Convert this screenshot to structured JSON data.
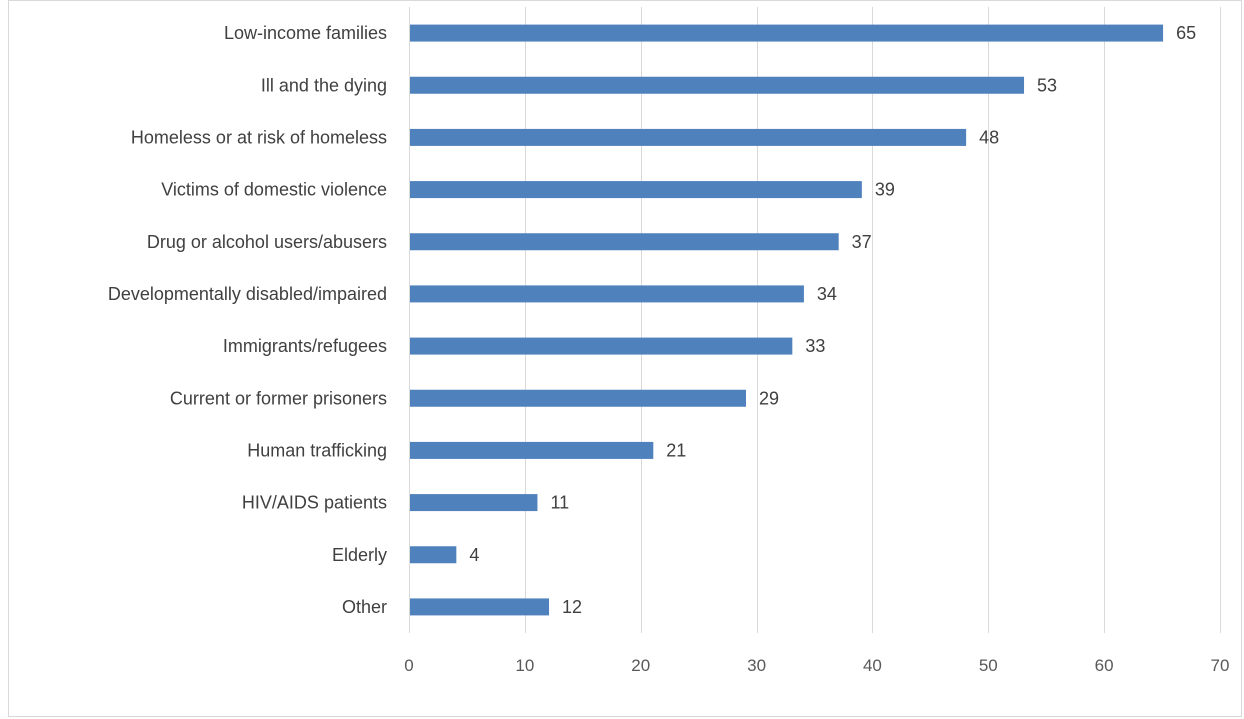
{
  "chart_data": {
    "type": "bar",
    "orientation": "horizontal",
    "categories": [
      "Low-income families",
      "Ill and the dying",
      "Homeless or at risk of homeless",
      "Victims of domestic violence",
      "Drug or alcohol users/abusers",
      "Developmentally disabled/impaired",
      "Immigrants/refugees",
      "Current or former prisoners",
      "Human trafficking",
      "HIV/AIDS patients",
      "Elderly",
      "Other"
    ],
    "values": [
      65,
      53,
      48,
      39,
      37,
      34,
      33,
      29,
      21,
      11,
      4,
      12
    ],
    "xlim": [
      0,
      70
    ],
    "x_ticks": [
      0,
      10,
      20,
      30,
      40,
      50,
      60,
      70
    ],
    "title": "",
    "xlabel": "",
    "ylabel": "",
    "grid": true,
    "legend": "none",
    "data_labels": true,
    "bar_color": "#4f81bd"
  }
}
